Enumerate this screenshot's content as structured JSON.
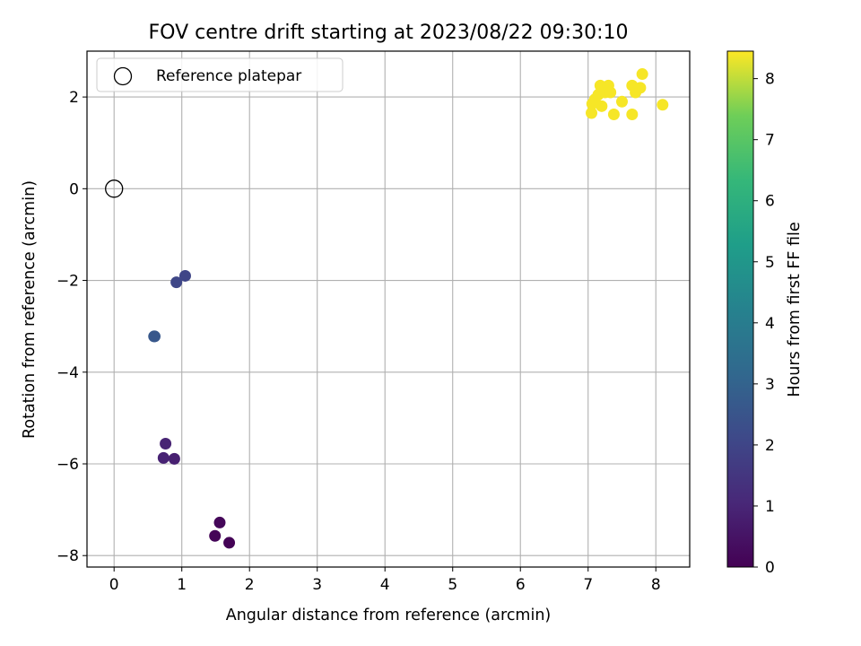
{
  "chart_data": {
    "type": "scatter",
    "title": "FOV centre drift starting at 2023/08/22 09:30:10",
    "xlabel": "Angular distance from reference (arcmin)",
    "ylabel": "Rotation from reference (arcmin)",
    "xlim": [
      -0.4,
      8.5
    ],
    "ylim": [
      -8.25,
      3.0
    ],
    "xticks": [
      0,
      1,
      2,
      3,
      4,
      5,
      6,
      7,
      8
    ],
    "yticks": [
      -8,
      -6,
      -4,
      -2,
      0,
      2
    ],
    "grid": true,
    "legend": {
      "position": "top-left",
      "entries": [
        "Reference platepar"
      ]
    },
    "reference_point": {
      "x": 0,
      "y": 0,
      "label": "Reference platepar"
    },
    "colorbar": {
      "label": "Hours from first FF file",
      "range": [
        0,
        8.45
      ],
      "ticks": [
        0,
        1,
        2,
        3,
        4,
        5,
        6,
        7,
        8
      ],
      "colormap": "viridis"
    },
    "points": [
      {
        "x": 1.56,
        "y": -7.28,
        "hours": 0.15
      },
      {
        "x": 1.49,
        "y": -7.57,
        "hours": 0.1
      },
      {
        "x": 1.7,
        "y": -7.72,
        "hours": 0.05
      },
      {
        "x": 0.76,
        "y": -5.56,
        "hours": 0.95
      },
      {
        "x": 0.73,
        "y": -5.87,
        "hours": 0.9
      },
      {
        "x": 0.89,
        "y": -5.89,
        "hours": 0.85
      },
      {
        "x": 0.59,
        "y": -3.22,
        "hours": 2.65
      },
      {
        "x": 0.6,
        "y": -3.22,
        "hours": 2.6
      },
      {
        "x": 0.92,
        "y": -2.04,
        "hours": 2.05
      },
      {
        "x": 1.05,
        "y": -1.9,
        "hours": 2.0
      },
      {
        "x": 7.05,
        "y": 1.65,
        "hours": 8.4
      },
      {
        "x": 7.06,
        "y": 1.85,
        "hours": 8.4
      },
      {
        "x": 7.1,
        "y": 1.95,
        "hours": 8.4
      },
      {
        "x": 7.15,
        "y": 2.05,
        "hours": 8.4
      },
      {
        "x": 7.18,
        "y": 2.25,
        "hours": 8.4
      },
      {
        "x": 7.2,
        "y": 1.8,
        "hours": 8.4
      },
      {
        "x": 7.25,
        "y": 2.1,
        "hours": 8.4
      },
      {
        "x": 7.3,
        "y": 2.25,
        "hours": 8.4
      },
      {
        "x": 7.33,
        "y": 2.1,
        "hours": 8.4
      },
      {
        "x": 7.38,
        "y": 1.62,
        "hours": 8.4
      },
      {
        "x": 7.5,
        "y": 1.9,
        "hours": 8.4
      },
      {
        "x": 7.65,
        "y": 2.25,
        "hours": 8.4
      },
      {
        "x": 7.65,
        "y": 1.62,
        "hours": 8.4
      },
      {
        "x": 7.7,
        "y": 2.1,
        "hours": 8.4
      },
      {
        "x": 7.77,
        "y": 2.2,
        "hours": 8.4
      },
      {
        "x": 7.8,
        "y": 2.5,
        "hours": 8.4
      },
      {
        "x": 8.1,
        "y": 1.83,
        "hours": 8.4
      }
    ]
  }
}
